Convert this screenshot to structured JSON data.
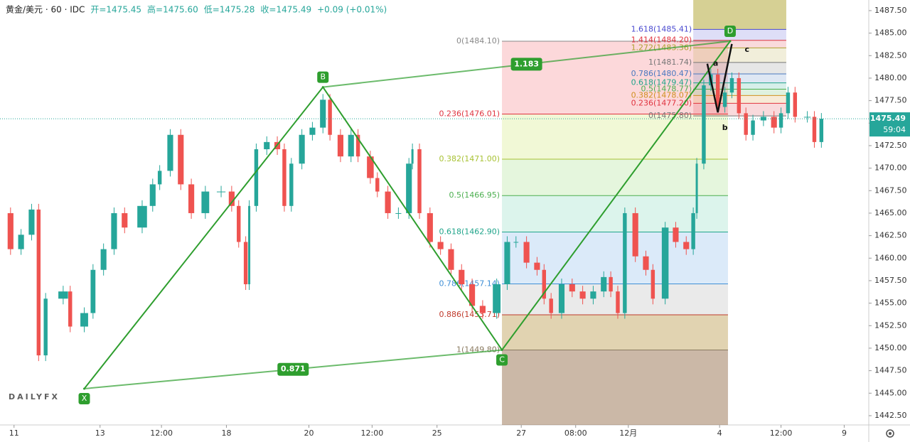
{
  "chart_data": {
    "type": "candlestick",
    "header": [
      "黄金/美元 · 60 · IDC",
      "开=1475.45",
      "高=1475.60",
      "低=1475.28",
      "收=1475.49",
      "+0.09 (+0.01%)"
    ],
    "logo": "DAILYFX",
    "xlim": [
      0,
      495
    ],
    "xticks": [
      {
        "value": 8,
        "label": "11"
      },
      {
        "value": 57,
        "label": "13"
      },
      {
        "value": 92,
        "label": "12:00"
      },
      {
        "value": 129,
        "label": "18"
      },
      {
        "value": 176,
        "label": "20"
      },
      {
        "value": 212,
        "label": "12:00"
      },
      {
        "value": 249,
        "label": "25"
      },
      {
        "value": 297,
        "label": "27"
      },
      {
        "value": 328,
        "label": "08:00"
      },
      {
        "value": 358,
        "label": "12月"
      },
      {
        "value": 410,
        "label": "4"
      },
      {
        "value": 445,
        "label": "12:00"
      },
      {
        "value": 481,
        "label": "9"
      }
    ],
    "ylim": [
      1441.47,
      1488.68
    ],
    "yticks": [
      {
        "value": 1442.5,
        "label": "1442.50"
      },
      {
        "value": 1445,
        "label": "1445.00"
      },
      {
        "value": 1447.5,
        "label": "1447.50"
      },
      {
        "value": 1450,
        "label": "1450.00"
      },
      {
        "value": 1452.5,
        "label": "1452.50"
      },
      {
        "value": 1455,
        "label": "1455.00"
      },
      {
        "value": 1457.5,
        "label": "1457.50"
      },
      {
        "value": 1460,
        "label": "1460.00"
      },
      {
        "value": 1462.5,
        "label": "1462.50"
      },
      {
        "value": 1465,
        "label": "1465.00"
      },
      {
        "value": 1467.5,
        "label": "1467.50"
      },
      {
        "value": 1470,
        "label": "1470.00"
      },
      {
        "value": 1472.5,
        "label": "1472.50"
      },
      {
        "value": 1475,
        "label": "1475.00"
      },
      {
        "value": 1477.5,
        "label": "1477.50"
      },
      {
        "value": 1480,
        "label": "1480.00"
      },
      {
        "value": 1482.5,
        "label": "1482.50"
      },
      {
        "value": 1485,
        "label": "1485.00"
      },
      {
        "value": 1487.5,
        "label": "1487.50"
      }
    ],
    "up_color": "#26a69a",
    "down_color": "#ef5350",
    "series": [
      {
        "name": "黄金/美元",
        "x": [
          0,
          6,
          12,
          18,
          22,
          26,
          36,
          40,
          48,
          53,
          59,
          65,
          71,
          81,
          87,
          91,
          97,
          103,
          109,
          117,
          126,
          132,
          136,
          140,
          142,
          146,
          152,
          158,
          162,
          166,
          172,
          178,
          184,
          188,
          194,
          200,
          204,
          211,
          215,
          221,
          227,
          233,
          235,
          239,
          245,
          251,
          257,
          263,
          269,
          275,
          283,
          289,
          294,
          300,
          306,
          310,
          314,
          320,
          326,
          332,
          338,
          344,
          348,
          352,
          356,
          362,
          368,
          372,
          379,
          385,
          391,
          395,
          397,
          401,
          405,
          409,
          413,
          417,
          421,
          425,
          429,
          435,
          441,
          445,
          449,
          453,
          460,
          464,
          468
        ],
        "values": [
          1465.0,
          1461.0,
          1462.6,
          1465.4,
          1449.2,
          1455.5,
          1456.3,
          1452.4,
          1453.9,
          1458.7,
          1461.0,
          1465.0,
          1463.4,
          1465.8,
          1468.2,
          1469.7,
          1473.7,
          1468.2,
          1465.0,
          1467.4,
          1467.4,
          1465.8,
          1461.8,
          1457.1,
          1465.8,
          1472.1,
          1472.9,
          1472.1,
          1465.8,
          1470.5,
          1473.7,
          1474.5,
          1477.6,
          1473.7,
          1471.3,
          1473.7,
          1471.3,
          1468.9,
          1467.4,
          1465.0,
          1465.0,
          1470.5,
          1472.1,
          1465.0,
          1461.8,
          1461.0,
          1458.7,
          1457.1,
          1454.7,
          1453.9,
          1457.1,
          1461.8,
          1461.8,
          1459.5,
          1458.7,
          1455.5,
          1453.9,
          1457.1,
          1456.3,
          1455.5,
          1456.3,
          1457.9,
          1456.3,
          1453.9,
          1465.0,
          1460.2,
          1458.7,
          1455.5,
          1463.4,
          1461.8,
          1461.0,
          1465.0,
          1470.5,
          1479.2,
          1480.4,
          1476.8,
          1478.4,
          1480.0,
          1476.1,
          1473.7,
          1475.3,
          1475.7,
          1474.5,
          1476.1,
          1478.4,
          1475.7,
          1475.7,
          1472.9,
          1475.49
        ]
      }
    ],
    "last_price": {
      "value": 1475.49,
      "label": "1475.49",
      "countdown": "59:04"
    },
    "pattern": {
      "color": "#2e9e2e",
      "points": [
        {
          "name": "X",
          "x": 48,
          "value": 1445.5
        },
        {
          "name": "B",
          "x": 184,
          "value": 1479.0
        },
        {
          "name": "C",
          "x": 286,
          "value": 1449.8
        },
        {
          "name": "D",
          "x": 416,
          "value": 1484.1
        }
      ],
      "ratios": [
        "0.871",
        "1.183"
      ]
    },
    "abc": {
      "color": "#111111",
      "points": [
        {
          "name": "a",
          "x": 403,
          "value": 1481.6
        },
        {
          "name": "b",
          "x": 409,
          "value": 1476.2
        },
        {
          "name": "c",
          "x": 417,
          "value": 1483.8
        }
      ]
    },
    "retracement": {
      "levels": [
        {
          "label": "0(1484.10)",
          "value": 1484.1,
          "color": "#888888"
        },
        {
          "label": "0.236(1476.01)",
          "value": 1476.01,
          "color": "#e0333f"
        },
        {
          "label": "0.382(1471.00)",
          "value": 1471.0,
          "color": "#a8c234"
        },
        {
          "label": "0.5(1466.95)",
          "value": 1466.95,
          "color": "#4caf50"
        },
        {
          "label": "0.618(1462.90)",
          "value": 1462.9,
          "color": "#1fa48a"
        },
        {
          "label": "0.786(1457.14)",
          "value": 1457.14,
          "color": "#3f8fd6"
        },
        {
          "label": "0.886(1453.71)",
          "value": 1453.71,
          "color": "#c0392b"
        },
        {
          "label": "1(1449.80)",
          "value": 1449.8,
          "color": "#8a7a60"
        }
      ],
      "fills": [
        "rgba(242,60,70,0.2)",
        "rgba(200,228,90,0.25)",
        "rgba(150,220,120,0.25)",
        "rgba(80,200,160,0.2)",
        "rgba(110,170,230,0.25)",
        "rgba(160,160,160,0.22)",
        "rgba(175,140,50,0.38)",
        "rgba(130,85,45,0.42)"
      ]
    },
    "extension": {
      "x": [
        395,
        448
      ],
      "top_fill": "rgba(180,170,60,0.55)",
      "levels": [
        {
          "label": "1.618(1485.41)",
          "value": 1485.41,
          "color": "#4a4ad0"
        },
        {
          "label": "1.414(1484.20)",
          "value": 1484.2,
          "color": "#e0333f"
        },
        {
          "label": "1.272(1483.36)",
          "value": 1483.36,
          "color": "#b0a030"
        },
        {
          "label": "1(1481.74)",
          "value": 1481.74,
          "color": "#777777"
        },
        {
          "label": "0.786(1480.47)",
          "value": 1480.47,
          "color": "#4a78c0"
        },
        {
          "label": "0.618(1479.47)",
          "value": 1479.47,
          "color": "#1fa48a"
        },
        {
          "label": "0.5(1478.77)",
          "value": 1478.77,
          "color": "#4caf50"
        },
        {
          "label": "0.382(1478.07)",
          "value": 1478.07,
          "color": "#d09020"
        },
        {
          "label": "0.236(1477.20)",
          "value": 1477.2,
          "color": "#e0333f"
        },
        {
          "label": "0(1475.80)",
          "value": 1475.8,
          "color": "#777777"
        }
      ]
    }
  }
}
